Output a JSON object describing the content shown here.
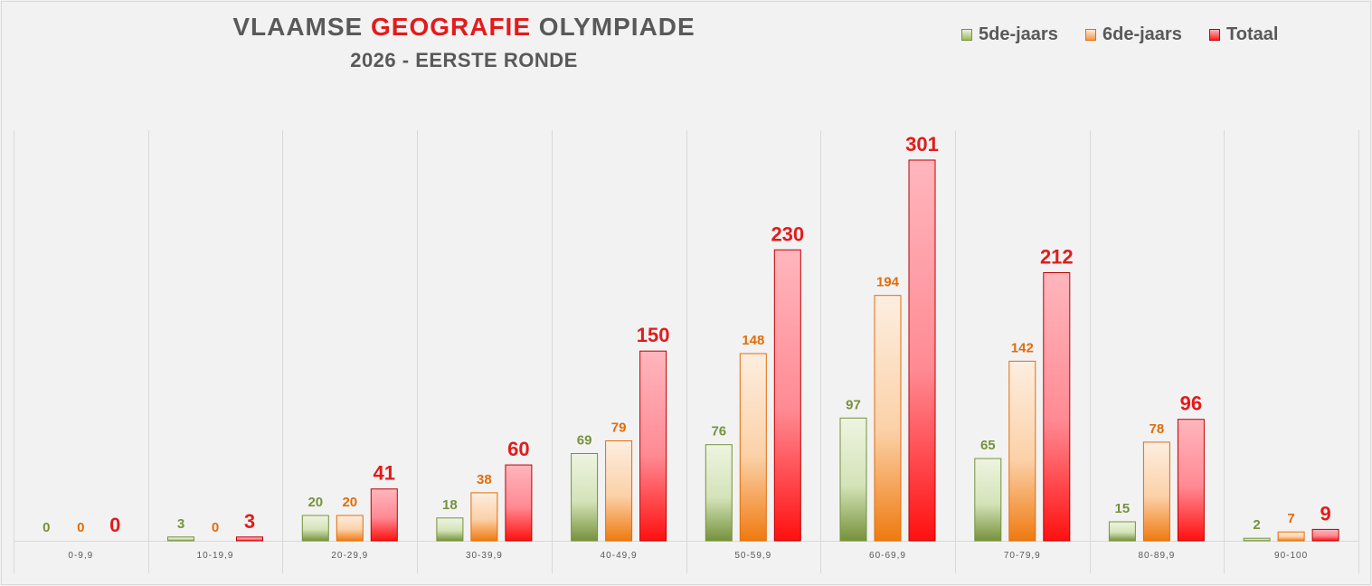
{
  "title": {
    "prefix": "VLAAMSE",
    "highlight": "GEOGRAFIE",
    "suffix": "OLYMPIADE",
    "subtitle": "2026 - EERSTE RONDE"
  },
  "colors": {
    "title": "#595959",
    "highlight": "#e31b1b",
    "five_label": "#76923c",
    "six_label": "#e36c09",
    "total_label": "#e31b1b"
  },
  "legend": {
    "position": "top-right",
    "items": [
      {
        "label": "5de-jaars",
        "color": "#76923c"
      },
      {
        "label": "6de-jaars",
        "color": "#e36c09"
      },
      {
        "label": "Totaal",
        "color": "#e31b1b"
      }
    ]
  },
  "chart_data": {
    "type": "bar",
    "title": "VLAAMSE GEOGRAFIE OLYMPIADE",
    "subtitle": "2026 - EERSTE RONDE",
    "categories": [
      "0-9,9",
      "10-19,9",
      "20-29,9",
      "30-39,9",
      "40-49,9",
      "50-59,9",
      "60-69,9",
      "70-79,9",
      "80-89,9",
      "90-100"
    ],
    "series": [
      {
        "name": "5de-jaars",
        "values": [
          0,
          3,
          20,
          18,
          69,
          76,
          97,
          65,
          15,
          2
        ]
      },
      {
        "name": "6de-jaars",
        "values": [
          0,
          0,
          20,
          38,
          79,
          148,
          194,
          142,
          78,
          7
        ]
      },
      {
        "name": "Totaal",
        "values": [
          0,
          3,
          41,
          60,
          150,
          230,
          301,
          212,
          96,
          9
        ]
      }
    ],
    "ylim": [
      0,
      301
    ],
    "grid": "vertical category separators",
    "legend": "top-right"
  }
}
